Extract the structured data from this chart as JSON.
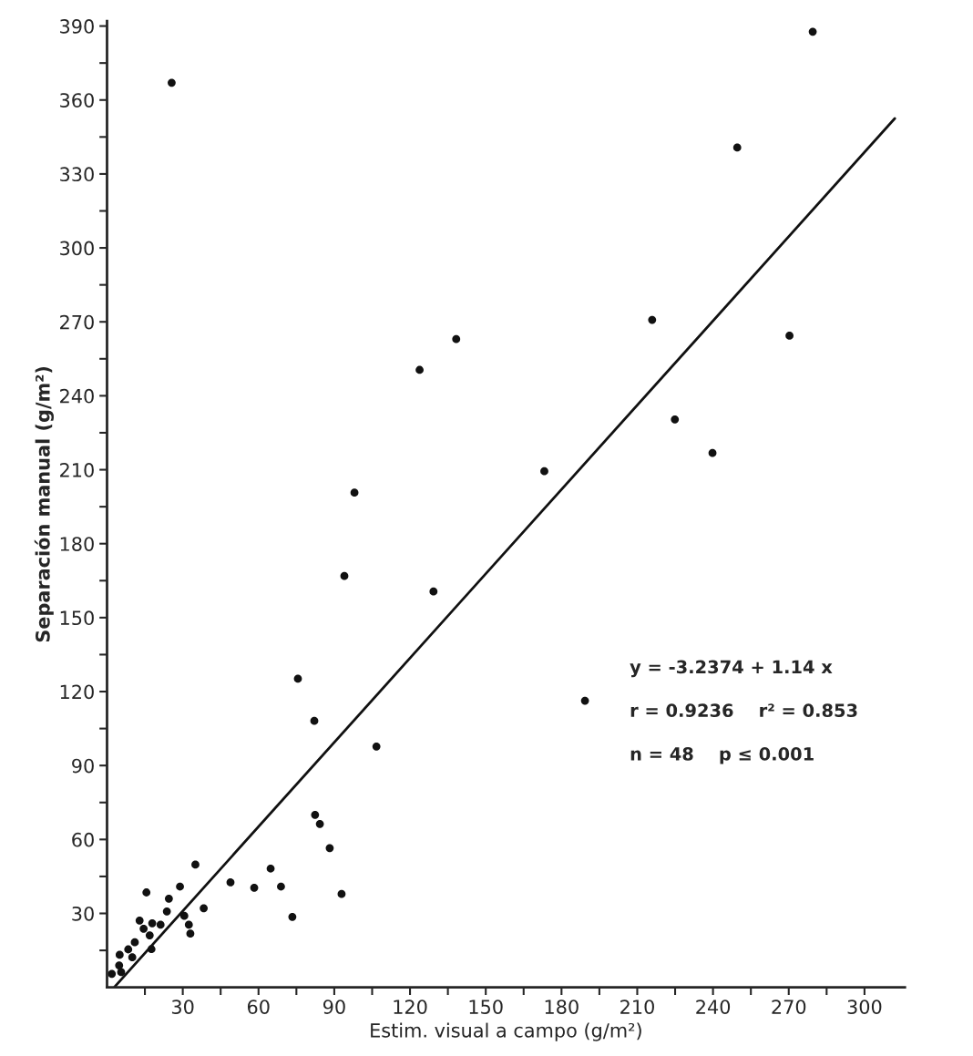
{
  "chart_data": {
    "type": "scatter",
    "xlabel": "Estim. visual a campo (g/m²)",
    "ylabel": "Separación manual (g/m²)",
    "xlim": [
      0,
      316
    ],
    "ylim": [
      0,
      392
    ],
    "xticks": [
      {
        "value": 15,
        "label": null
      },
      30,
      {
        "value": 45,
        "label": null
      },
      60,
      {
        "value": 75,
        "label": null
      },
      90,
      {
        "value": 105,
        "label": null
      },
      120,
      {
        "value": 135,
        "label": null
      },
      150,
      {
        "value": 165,
        "label": null
      },
      180,
      {
        "value": 195,
        "label": null
      },
      210,
      {
        "value": 225,
        "label": null
      },
      240,
      {
        "value": 255,
        "label": null
      },
      270,
      {
        "value": 285,
        "label": null
      },
      300
    ],
    "yticks": [
      {
        "value": 15,
        "label": null
      },
      30,
      {
        "value": 45,
        "label": null
      },
      60,
      {
        "value": 75,
        "label": null
      },
      90,
      {
        "value": 105,
        "label": null
      },
      120,
      {
        "value": 135,
        "label": null
      },
      150,
      {
        "value": 165,
        "label": null
      },
      180,
      {
        "value": 195,
        "label": null
      },
      210,
      {
        "value": 225,
        "label": null
      },
      240,
      {
        "value": 255,
        "label": null
      },
      270,
      {
        "value": 285,
        "label": null
      },
      300,
      {
        "value": 315,
        "label": null
      },
      330,
      {
        "value": 345,
        "label": null
      },
      360,
      {
        "value": 375,
        "label": null
      },
      390
    ],
    "grid": false,
    "legend": false,
    "marker": "circle",
    "series": [
      {
        "color": "#111111",
        "x": [
          1.9,
          4.8,
          5.6,
          5.0,
          8.4,
          10,
          11,
          12.9,
          14.5,
          16.9,
          17.9,
          17.6,
          15.6,
          21.2,
          23.7,
          24.5,
          28.9,
          30.6,
          32.4,
          33,
          35,
          38.3,
          48.9,
          58.3,
          64.8,
          68.9,
          73.4,
          82.4,
          84.3,
          88.2,
          92.9,
          123.8,
          173.2,
          98,
          94,
          129.3,
          75.6,
          82.1,
          189.3,
          106.7,
          279.5,
          249.6,
          215.9,
          270.3,
          224.9,
          239.8,
          138.3,
          25.6
        ],
        "values": [
          5.5,
          8.9,
          6.2,
          13.2,
          15.4,
          12.2,
          18.3,
          27.1,
          23.8,
          21.1,
          26,
          15.5,
          38.5,
          25.4,
          30.8,
          36,
          40.9,
          29,
          25.4,
          21.8,
          49.8,
          32.1,
          42.6,
          40.4,
          48.2,
          40.9,
          28.6,
          70,
          66.3,
          56.5,
          37.9,
          250.5,
          209.4,
          200.7,
          166.9,
          160.6,
          125.2,
          108.1,
          116.3,
          97.7,
          387.7,
          340.7,
          270.8,
          264.4,
          230.4,
          216.8,
          263,
          367
        ]
      },
      {
        "type": "line",
        "color": "#111111",
        "line_style": "solid",
        "marker": "none",
        "x": [
          3,
          312
        ],
        "values": [
          0.2,
          352.5
        ]
      }
    ],
    "annotations": [
      "y = -3.2374 + 1.14 x",
      "r = 0.9236    r² = 0.853",
      "n = 48    p ≤ 0.001"
    ]
  }
}
